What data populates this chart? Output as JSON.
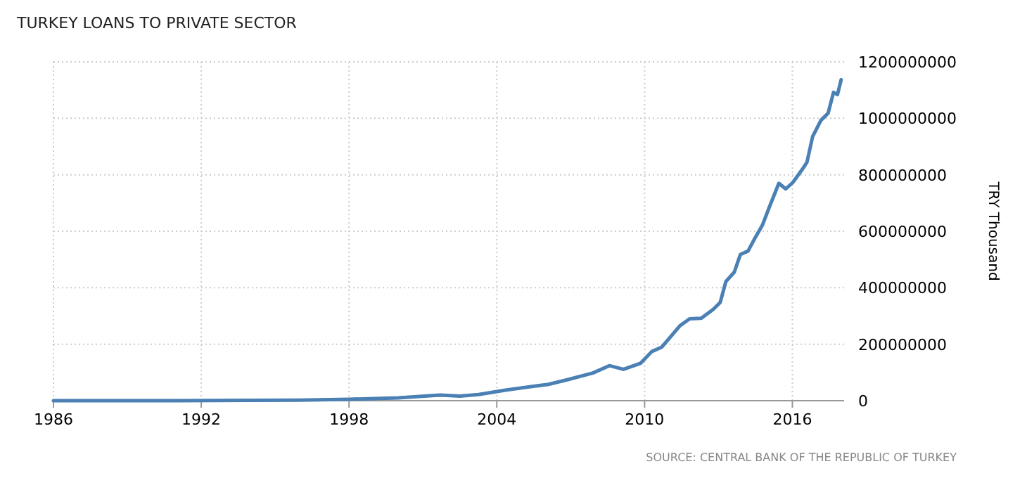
{
  "chart_data": {
    "type": "line",
    "title": "TURKEY LOANS TO PRIVATE SECTOR",
    "ylabel": "TRY Thousand",
    "annotations": [
      "SOURCE: CENTRAL BANK OF THE REPUBLIC OF TURKEY"
    ],
    "x": [
      1986,
      1990,
      1994,
      1996,
      1998,
      2000,
      2001.7,
      2002.5,
      2003.26,
      2004.4,
      2006.1,
      2006.86,
      2007.9,
      2008.57,
      2009.14,
      2009.83,
      2010.29,
      2010.7,
      2011.43,
      2011.83,
      2012.3,
      2012.78,
      2013.07,
      2013.3,
      2013.64,
      2013.89,
      2014.2,
      2014.5,
      2014.78,
      2015.07,
      2015.45,
      2015.73,
      2016.02,
      2016.4,
      2016.59,
      2016.82,
      2017.16,
      2017.45,
      2017.67,
      2017.83,
      2017.98
    ],
    "series": [
      {
        "color": "#4a80b4",
        "values": [
          0,
          0,
          1000000,
          2000000,
          5000000,
          10000000,
          20000000,
          16000000,
          22000000,
          38000000,
          58000000,
          74000000,
          98000000,
          124000000,
          111000000,
          132000000,
          174000000,
          190000000,
          265000000,
          290000000,
          292000000,
          323000000,
          348000000,
          422000000,
          455000000,
          518000000,
          530000000,
          579000000,
          621000000,
          687000000,
          770000000,
          750000000,
          773000000,
          819000000,
          844000000,
          935000000,
          993000000,
          1018000000,
          1092000000,
          1084000000,
          1137000000
        ]
      }
    ],
    "xlim": [
      1986,
      2018.1
    ],
    "xticks": [
      1986,
      1992,
      1998,
      2004,
      2010,
      2016
    ],
    "ylim": [
      0,
      1200000000
    ],
    "yticks": [
      0,
      200000000,
      400000000,
      600000000,
      800000000,
      1000000000,
      1200000000
    ],
    "grid": true,
    "line_style": "solid",
    "marker": "none"
  }
}
